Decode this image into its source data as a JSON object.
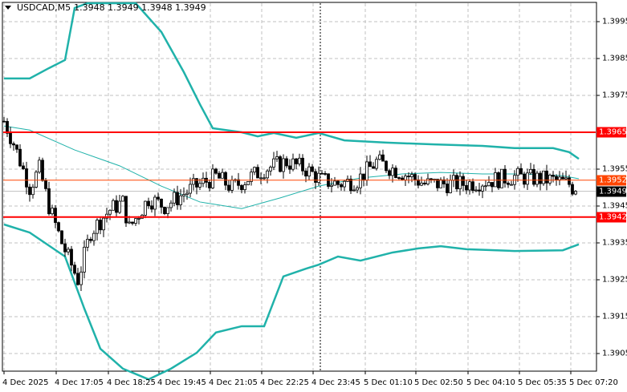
{
  "title": {
    "symbol": "USDCAD,M5",
    "ohlc": "1.3948 1.3949 1.3948 1.3949"
  },
  "colors": {
    "band": "#20B2AA",
    "level_red": "#FF0000",
    "level_orange": "#FF4500",
    "current": "#000000"
  },
  "chart_data": {
    "type": "candlestick",
    "price_axis": {
      "min": 1.39,
      "max": 1.4,
      "ticks": [
        "1.3995",
        "1.3985",
        "1.3975",
        "1.3955",
        "1.3945",
        "1.3935",
        "1.3925",
        "1.3915",
        "1.3905"
      ]
    },
    "time_axis": [
      "4 Dec 2025",
      "4 Dec 17:05",
      "4 Dec 18:25",
      "4 Dec 19:45",
      "4 Dec 21:05",
      "4 Dec 22:25",
      "4 Dec 23:45",
      "5 Dec 01:10",
      "5 Dec 02:50",
      "5 Dec 04:10",
      "5 Dec 05:35",
      "5 Dec 07:20"
    ],
    "levels": [
      {
        "price": 1.3965,
        "label": "1.3965",
        "color": "#FF0000"
      },
      {
        "price": 1.3952,
        "label": "1.3952",
        "color": "#FF4500"
      },
      {
        "price": 1.3942,
        "label": "1.3942",
        "color": "#FF0000"
      }
    ],
    "current_price": {
      "price": 1.3949,
      "label": "1.3949"
    },
    "close_keypoints": [
      [
        0,
        1.3968
      ],
      [
        3,
        1.3962
      ],
      [
        8,
        1.395
      ],
      [
        11,
        1.3955
      ],
      [
        14,
        1.3945
      ],
      [
        18,
        1.3935
      ],
      [
        23,
        1.3925
      ],
      [
        27,
        1.3938
      ],
      [
        33,
        1.3944
      ],
      [
        37,
        1.3946
      ],
      [
        39,
        1.3939
      ],
      [
        45,
        1.3947
      ],
      [
        50,
        1.3945
      ],
      [
        59,
        1.395
      ],
      [
        66,
        1.3953
      ],
      [
        71,
        1.395
      ],
      [
        81,
        1.3955
      ],
      [
        88,
        1.3957
      ],
      [
        94,
        1.3955
      ],
      [
        99,
        1.3952
      ],
      [
        104,
        1.3951
      ],
      [
        110,
        1.3952
      ],
      [
        116,
        1.3957
      ],
      [
        124,
        1.3954
      ],
      [
        131,
        1.3951
      ],
      [
        144,
        1.3951
      ],
      [
        159,
        1.3953
      ],
      [
        171,
        1.3952
      ],
      [
        176,
        1.3951
      ],
      [
        178,
        1.3949
      ]
    ],
    "bollinger": {
      "upper": [
        [
          0,
          1.39796
        ],
        [
          8,
          1.39796
        ],
        [
          14,
          1.39824
        ],
        [
          19,
          1.39846
        ],
        [
          22,
          1.39987
        ],
        [
          26,
          1.4
        ],
        [
          41,
          1.4
        ],
        [
          49,
          1.39922
        ],
        [
          56,
          1.39813
        ],
        [
          61,
          1.39726
        ],
        [
          65,
          1.39661
        ],
        [
          74,
          1.3965
        ],
        [
          79,
          1.39639
        ],
        [
          84,
          1.39648
        ],
        [
          91,
          1.39635
        ],
        [
          98,
          1.39648
        ],
        [
          106,
          1.39628
        ],
        [
          119,
          1.39622
        ],
        [
          134,
          1.39617
        ],
        [
          149,
          1.39613
        ],
        [
          159,
          1.39607
        ],
        [
          171,
          1.39607
        ],
        [
          176,
          1.39596
        ],
        [
          179,
          1.39578
        ]
      ],
      "middle": [
        [
          0,
          1.39667
        ],
        [
          8,
          1.39656
        ],
        [
          22,
          1.39602
        ],
        [
          36,
          1.39559
        ],
        [
          49,
          1.39504
        ],
        [
          61,
          1.39461
        ],
        [
          74,
          1.39443
        ],
        [
          86,
          1.39472
        ],
        [
          98,
          1.39504
        ],
        [
          111,
          1.39526
        ],
        [
          124,
          1.39537
        ],
        [
          136,
          1.39541
        ],
        [
          149,
          1.39537
        ],
        [
          161,
          1.39537
        ],
        [
          174,
          1.39532
        ],
        [
          179,
          1.39524
        ]
      ],
      "lower": [
        [
          0,
          1.394
        ],
        [
          8,
          1.39378
        ],
        [
          19,
          1.39313
        ],
        [
          25,
          1.39172
        ],
        [
          30,
          1.39063
        ],
        [
          37,
          1.39009
        ],
        [
          45,
          1.3898
        ],
        [
          52,
          1.39009
        ],
        [
          60,
          1.39052
        ],
        [
          66,
          1.39107
        ],
        [
          74,
          1.39124
        ],
        [
          81,
          1.39124
        ],
        [
          87,
          1.39259
        ],
        [
          94,
          1.3928
        ],
        [
          98,
          1.39291
        ],
        [
          104,
          1.39313
        ],
        [
          111,
          1.39302
        ],
        [
          121,
          1.39324
        ],
        [
          129,
          1.39335
        ],
        [
          136,
          1.39341
        ],
        [
          144,
          1.39333
        ],
        [
          159,
          1.39328
        ],
        [
          174,
          1.3933
        ],
        [
          179,
          1.39346
        ]
      ]
    }
  }
}
